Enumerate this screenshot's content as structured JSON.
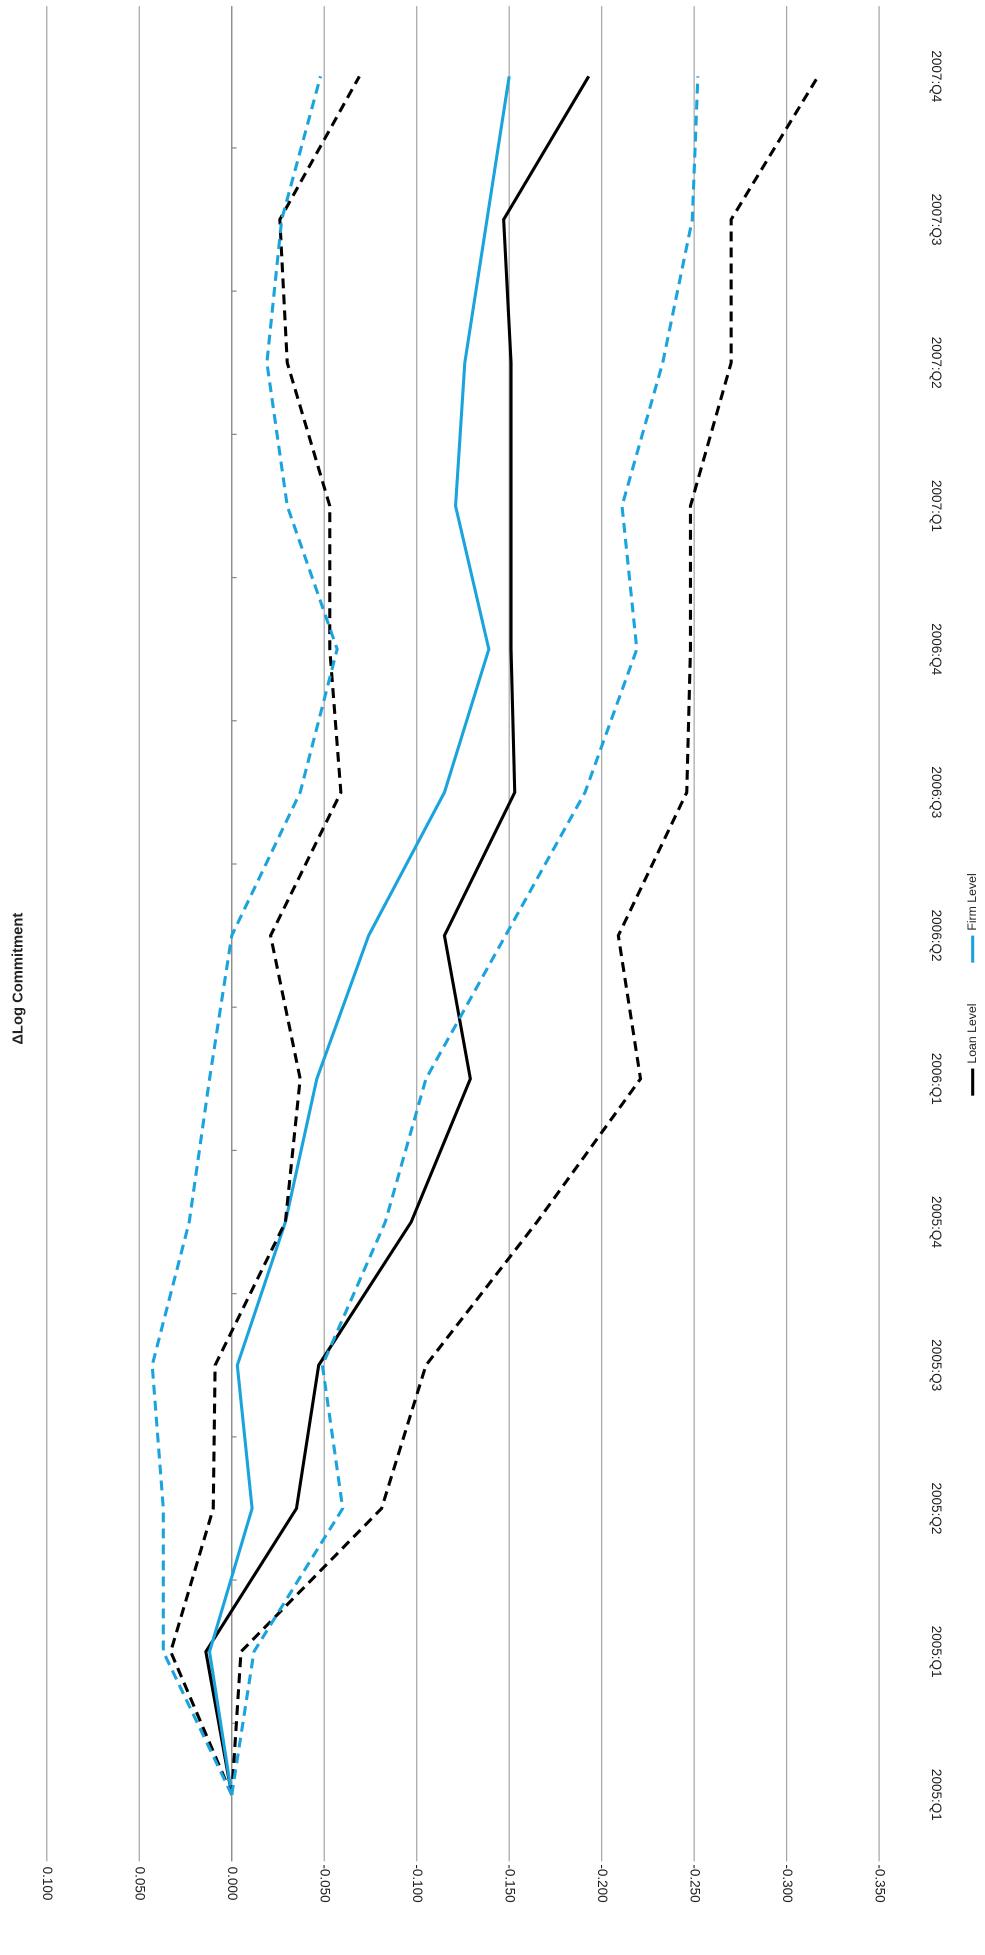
{
  "chart_data": {
    "type": "line",
    "title": "ΔLog Commitment",
    "categories": [
      "2005:Q1",
      "2005:Q1",
      "2005:Q2",
      "2005:Q3",
      "2005:Q4",
      "2006:Q1",
      "2006:Q2",
      "2006:Q3",
      "2006:Q4",
      "2007:Q1",
      "2007:Q2",
      "2007:Q3",
      "2007:Q4"
    ],
    "series": [
      {
        "name": "Loan Level",
        "color": "#000000",
        "dash": false,
        "values": [
          0,
          0.014,
          -0.035,
          -0.047,
          -0.097,
          -0.129,
          -0.115,
          -0.153,
          -0.151,
          -0.151,
          -0.151,
          -0.147,
          -0.193
        ]
      },
      {
        "name": "Firm Level",
        "color": "#1aa3dc",
        "dash": false,
        "values": [
          0,
          0.012,
          -0.011,
          -0.003,
          -0.029,
          -0.046,
          -0.074,
          -0.115,
          -0.139,
          -0.121,
          -0.126,
          -0.138,
          -0.15
        ]
      },
      {
        "color": "#000000",
        "dash": true,
        "values": [
          0,
          0.033,
          0.01,
          0.009,
          -0.029,
          -0.037,
          -0.021,
          -0.059,
          -0.053,
          -0.053,
          -0.03,
          -0.026,
          -0.069
        ]
      },
      {
        "color": "#000000",
        "dash": true,
        "values": [
          0,
          -0.005,
          -0.081,
          -0.105,
          -0.165,
          -0.221,
          -0.209,
          -0.246,
          -0.248,
          -0.248,
          -0.27,
          -0.27,
          -0.317
        ]
      },
      {
        "color": "#1aa3dc",
        "dash": true,
        "values": [
          0,
          0.037,
          0.037,
          0.043,
          0.023,
          0.012,
          0,
          -0.037,
          -0.057,
          -0.03,
          -0.019,
          -0.027,
          -0.048
        ]
      },
      {
        "color": "#1aa3dc",
        "dash": true,
        "values": [
          0,
          -0.012,
          -0.06,
          -0.049,
          -0.083,
          -0.105,
          -0.148,
          -0.191,
          -0.219,
          -0.211,
          -0.233,
          -0.249,
          -0.252
        ]
      }
    ],
    "ylim": [
      0.1,
      -0.35
    ],
    "yticks": [
      {
        "value": 0.1,
        "label": "0.100"
      },
      {
        "value": 0.05,
        "label": "0.050"
      },
      {
        "value": 0,
        "label": "0.000"
      },
      {
        "value": -0.05,
        "label": "-0.050"
      },
      {
        "value": -0.1,
        "label": "-0.100"
      },
      {
        "value": -0.15,
        "label": "-0.150"
      },
      {
        "value": -0.2,
        "label": "-0.200"
      },
      {
        "value": -0.25,
        "label": "-0.250"
      },
      {
        "value": -0.3,
        "label": "-0.300"
      },
      {
        "value": -0.35,
        "label": "-0.350"
      }
    ],
    "grid": true,
    "legend": "right",
    "orientation": "rotated"
  }
}
